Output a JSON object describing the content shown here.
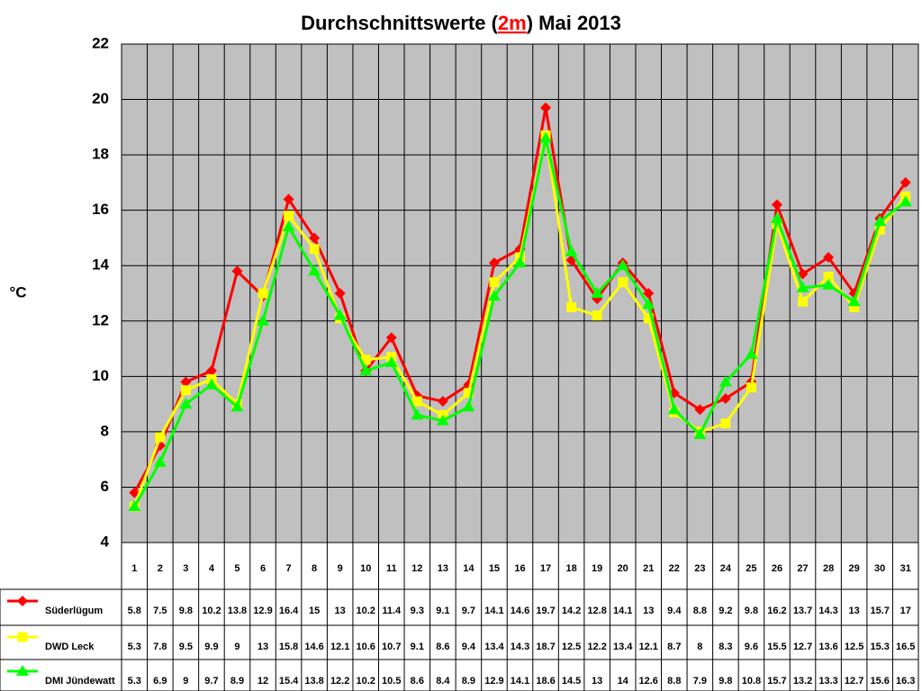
{
  "chart_data": {
    "type": "line",
    "title": [
      "Durchschnittswerte (",
      "2m",
      ") Mai 2013"
    ],
    "y_label": "°C",
    "categories": [
      "1",
      "2",
      "3",
      "4",
      "5",
      "6",
      "7",
      "8",
      "9",
      "10",
      "11",
      "12",
      "13",
      "14",
      "15",
      "16",
      "17",
      "18",
      "19",
      "20",
      "21",
      "22",
      "23",
      "24",
      "25",
      "26",
      "27",
      "28",
      "29",
      "30",
      "31"
    ],
    "series": [
      {
        "name": "Süderlügum",
        "color": "#ff0000",
        "marker": "diamond",
        "values": [
          5.8,
          7.5,
          9.8,
          10.2,
          13.8,
          12.9,
          16.4,
          15,
          13,
          10.2,
          11.4,
          9.3,
          9.1,
          9.7,
          14.1,
          14.6,
          19.7,
          14.2,
          12.8,
          14.1,
          13,
          9.4,
          8.8,
          9.2,
          9.8,
          16.2,
          13.7,
          14.3,
          13,
          15.7,
          17
        ]
      },
      {
        "name": "DWD Leck",
        "color": "#ffff00",
        "marker": "square",
        "values": [
          5.3,
          7.8,
          9.5,
          9.9,
          9,
          13,
          15.8,
          14.6,
          12.1,
          10.6,
          10.7,
          9.1,
          8.6,
          9.4,
          13.4,
          14.3,
          18.7,
          12.5,
          12.2,
          13.4,
          12.1,
          8.7,
          8,
          8.3,
          9.6,
          15.5,
          12.7,
          13.6,
          12.5,
          15.3,
          16.5
        ]
      },
      {
        "name": "DMI Jündewatt",
        "color": "#00ff00",
        "marker": "triangle",
        "values": [
          5.3,
          6.9,
          9,
          9.7,
          8.9,
          12,
          15.4,
          13.8,
          12.2,
          10.2,
          10.5,
          8.6,
          8.4,
          8.9,
          12.9,
          14.1,
          18.6,
          14.5,
          13,
          14,
          12.6,
          8.8,
          7.9,
          9.8,
          10.8,
          15.7,
          13.2,
          13.3,
          12.7,
          15.6,
          16.3
        ]
      }
    ],
    "ylim": [
      4,
      22
    ],
    "yticks": [
      4,
      6,
      8,
      10,
      12,
      14,
      16,
      18,
      20,
      22
    ],
    "grid": true,
    "plot_background": "#c0c0c0"
  }
}
